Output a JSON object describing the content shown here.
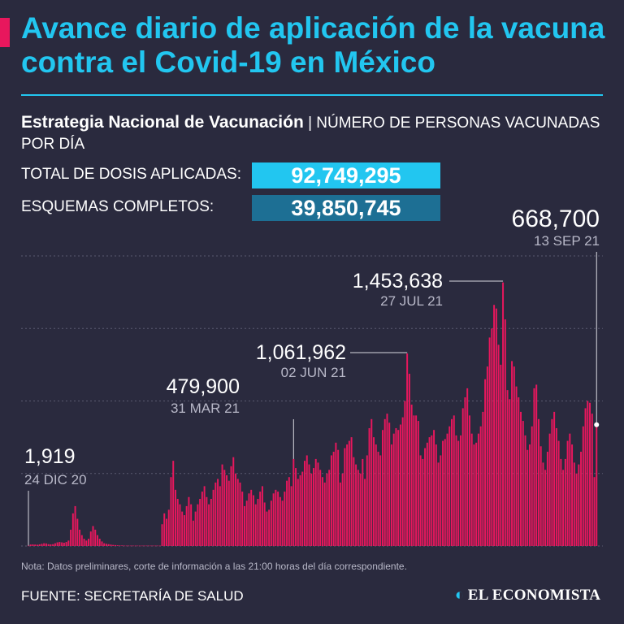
{
  "title": "Avance diario de aplicación de la vacuna contra el Covid-19 en México",
  "subtitle_bold": "Estrategia Nacional de Vacunación",
  "subtitle_rest": " | NÚMERO DE PERSONAS VACUNADAS POR DÍA",
  "stats": {
    "total_label": "TOTAL DE DOSIS APLICADAS:",
    "total_value": "92,749,295",
    "complete_label": "ESQUEMAS COMPLETOS:",
    "complete_value": "39,850,745"
  },
  "note": "Nota: Datos preliminares, corte de información a las 21:00 horas del día correspondiente.",
  "source": "FUENTE: SECRETARÍA DE SALUD",
  "logo": "EL ECONOMISTA",
  "colors": {
    "bar": "#e8175d",
    "accent": "#22c6f0",
    "accent_dark": "#1d6f94",
    "background": "#2a2a3e",
    "grid": "#5a5a70"
  },
  "chart_data": {
    "type": "bar",
    "x_start": "24 DIC 20",
    "x_end": "13 SEP 21",
    "ylim": [
      0,
      1600000
    ],
    "grid": true,
    "annotations": [
      {
        "date": "24 DIC 20",
        "value": 1919,
        "label": "1,919"
      },
      {
        "date": "31 MAR 21",
        "value": 479900,
        "label": "479,900"
      },
      {
        "date": "02 JUN 21",
        "value": 1061962,
        "label": "1,061,962"
      },
      {
        "date": "27 JUL 21",
        "value": 1453638,
        "label": "1,453,638"
      },
      {
        "date": "13 SEP 21",
        "value": 668700,
        "label": "668,700"
      }
    ],
    "values": [
      1919,
      8000,
      9000,
      8000,
      7000,
      9000,
      12000,
      15000,
      14000,
      10000,
      9000,
      10000,
      15000,
      20000,
      22000,
      20000,
      18000,
      22000,
      30000,
      90000,
      180000,
      220000,
      150000,
      90000,
      60000,
      40000,
      30000,
      40000,
      80000,
      110000,
      90000,
      60000,
      40000,
      25000,
      15000,
      12000,
      10000,
      8000,
      6000,
      5000,
      4000,
      3000,
      3000,
      2000,
      2000,
      2000,
      2000,
      2000,
      2000,
      2000,
      2000,
      2000,
      2000,
      2000,
      2000,
      2000,
      2000,
      2000,
      2000,
      2000,
      120000,
      180000,
      150000,
      200000,
      380000,
      470000,
      310000,
      260000,
      230000,
      190000,
      170000,
      220000,
      270000,
      230000,
      140000,
      190000,
      230000,
      260000,
      300000,
      330000,
      270000,
      230000,
      260000,
      310000,
      350000,
      370000,
      330000,
      450000,
      420000,
      390000,
      360000,
      440000,
      490000,
      400000,
      370000,
      350000,
      300000,
      220000,
      250000,
      290000,
      310000,
      280000,
      230000,
      260000,
      300000,
      330000,
      240000,
      190000,
      200000,
      250000,
      290000,
      310000,
      300000,
      270000,
      250000,
      300000,
      360000,
      380000,
      330000,
      479900,
      430000,
      370000,
      390000,
      410000,
      470000,
      500000,
      450000,
      400000,
      430000,
      480000,
      460000,
      420000,
      380000,
      350000,
      400000,
      420000,
      500000,
      520000,
      570000,
      530000,
      350000,
      400000,
      540000,
      560000,
      580000,
      600000,
      490000,
      450000,
      420000,
      400000,
      480000,
      370000,
      500000,
      650000,
      700000,
      600000,
      560000,
      520000,
      500000,
      640000,
      700000,
      730000,
      680000,
      560000,
      620000,
      650000,
      640000,
      670000,
      710000,
      800000,
      1061962,
      950000,
      780000,
      720000,
      720000,
      690000,
      500000,
      480000,
      540000,
      570000,
      600000,
      610000,
      640000,
      560000,
      460000,
      500000,
      580000,
      590000,
      620000,
      660000,
      700000,
      720000,
      610000,
      580000,
      610000,
      760000,
      820000,
      870000,
      720000,
      620000,
      560000,
      570000,
      620000,
      660000,
      740000,
      920000,
      990000,
      1150000,
      1200000,
      1330000,
      1310000,
      1110000,
      1000000,
      1453638,
      1250000,
      860000,
      810000,
      1020000,
      990000,
      880000,
      820000,
      740000,
      690000,
      610000,
      530000,
      560000,
      660000,
      870000,
      890000,
      700000,
      550000,
      460000,
      420000,
      520000,
      620000,
      700000,
      740000,
      650000,
      580000,
      480000,
      420000,
      480000,
      580000,
      620000,
      560000,
      460000,
      400000,
      450000,
      520000,
      660000,
      760000,
      800000,
      790000,
      730000,
      380000,
      668700
    ]
  }
}
